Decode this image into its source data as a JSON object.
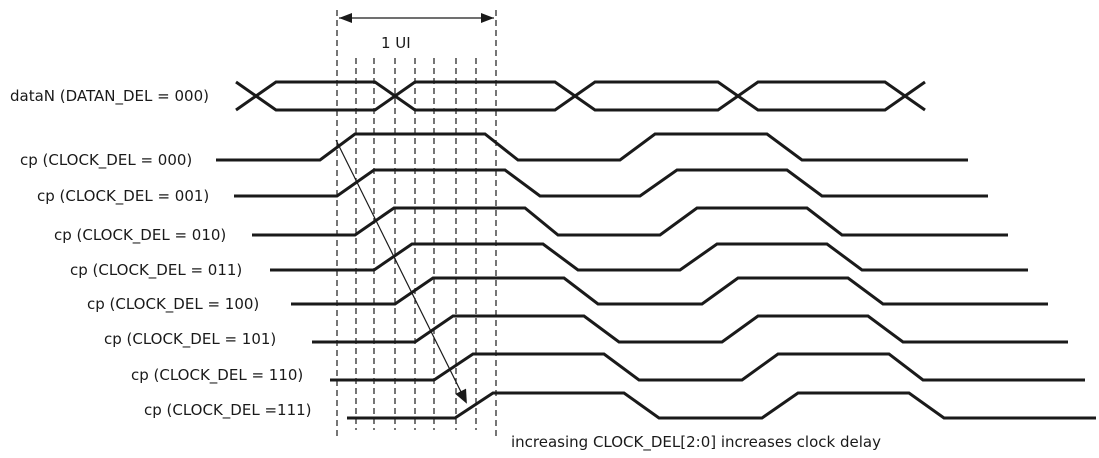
{
  "diagram": {
    "ui_label": "1 UI",
    "data_label": "dataN (DATAN_DEL = 000)",
    "clock_labels": [
      "cp (CLOCK_DEL = 000)",
      "cp (CLOCK_DEL = 001)",
      "cp (CLOCK_DEL = 010)",
      "cp (CLOCK_DEL = 011)",
      "cp (CLOCK_DEL = 100)",
      "cp (CLOCK_DEL = 101)",
      "cp (CLOCK_DEL = 110)",
      "cp (CLOCK_DEL =111)"
    ],
    "annotation": "increasing CLOCK_DEL[2:0] increases clock delay"
  }
}
